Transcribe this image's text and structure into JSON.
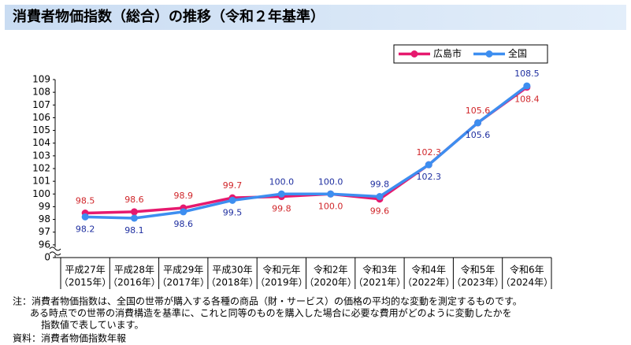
{
  "chart_data": {
    "type": "line",
    "title": "消費者物価指数（総合）の推移（令和２年基準）",
    "categories": [
      "平成27年",
      "平成28年",
      "平成29年",
      "平成30年",
      "令和元年",
      "令和2年",
      "令和3年",
      "令和4年",
      "令和5年",
      "令和6年"
    ],
    "categories_sub": [
      "（2015年）",
      "（2016年）",
      "（2017年）",
      "（2018年）",
      "（2019年）",
      "（2020年）",
      "（2021年）",
      "（2022年）",
      "（2023年）",
      "（2024年）"
    ],
    "series": [
      {
        "name": "広島市",
        "color": "#e6196e",
        "label_color": "#d0262a",
        "values": [
          98.5,
          98.6,
          98.9,
          99.7,
          99.8,
          100,
          99.6,
          102.3,
          105.6,
          108.4
        ],
        "value_labels": [
          "98.5",
          "98.6",
          "98.9",
          "99.7",
          "99.8",
          "100.0",
          "99.6",
          "102.3",
          "105.6",
          "108.4"
        ]
      },
      {
        "name": "全国",
        "color": "#3d8ef0",
        "label_color": "#1f2fa0",
        "values": [
          98.2,
          98.1,
          98.6,
          99.5,
          100,
          100,
          99.8,
          102.3,
          105.6,
          108.5
        ],
        "value_labels": [
          "98.2",
          "98.1",
          "98.6",
          "99.5",
          "100.0",
          "100.0",
          "99.8",
          "102.3",
          "105.6",
          "108.5"
        ]
      }
    ],
    "ylim": [
      0,
      109
    ],
    "axis_break": [
      0,
      96
    ],
    "yticks": [
      0,
      96,
      97,
      98,
      99,
      100,
      101,
      102,
      103,
      104,
      105,
      106,
      107,
      108,
      109
    ],
    "grid": false,
    "legend": "top-right",
    "notes": [
      "注：消費者物価指数は、全国の世帯が購入する各種の商品（財・サービス）の価格の平均的な変動を測定するものです。",
      "ある時点での世帯の消費構造を基準に、これと同等のものを購入した場合に必要な費用がどのように変動したかを",
      "指数値で表しています。"
    ],
    "source": "資料：消費者物価指数年報"
  }
}
